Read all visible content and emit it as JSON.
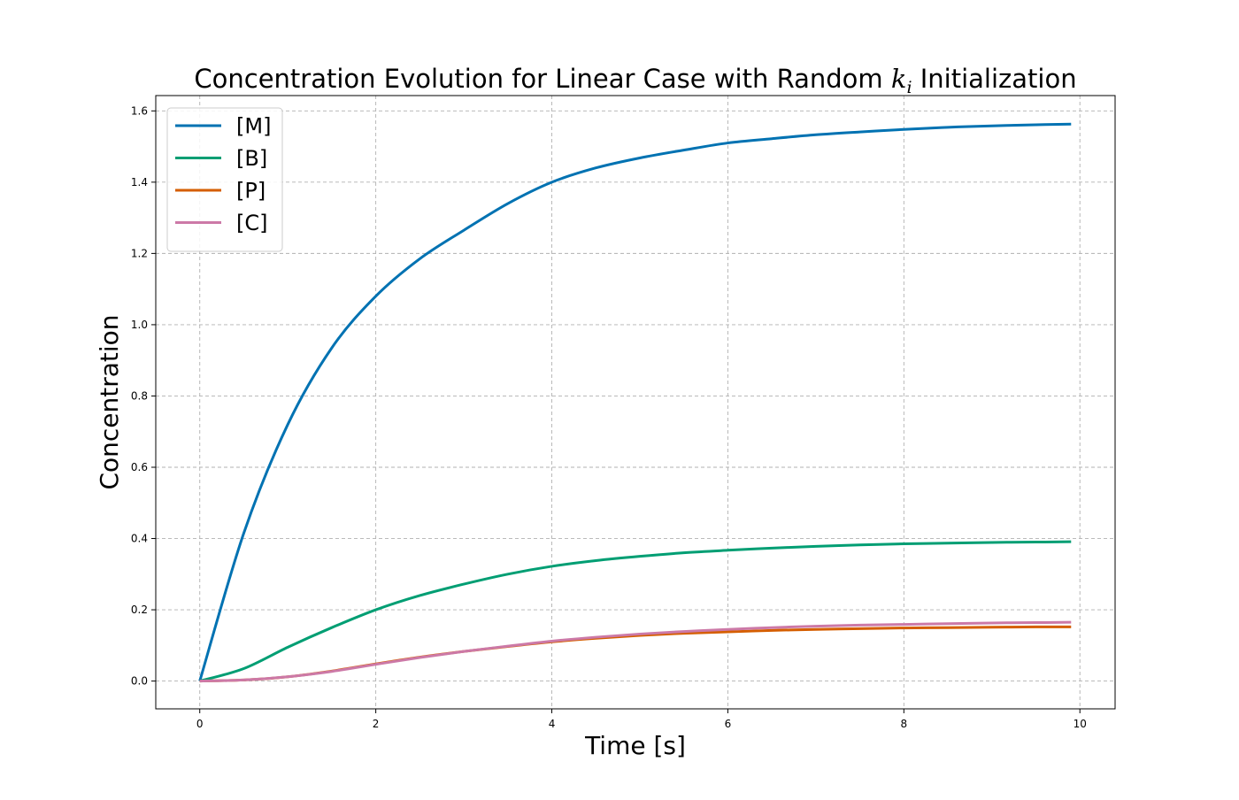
{
  "chart_data": {
    "type": "line",
    "title": {
      "prefix": "Concentration Evolution for Linear Case with Random ",
      "math_var": "k",
      "math_sub": "i",
      "suffix": " Initialization"
    },
    "xlabel": "Time [s]",
    "ylabel": "Concentration",
    "xlim": [
      -0.5,
      10.4
    ],
    "ylim": [
      -0.078,
      1.643
    ],
    "x_ticks": [
      0,
      2,
      4,
      6,
      8,
      10
    ],
    "y_ticks": [
      0.0,
      0.2,
      0.4,
      0.6,
      0.8,
      1.0,
      1.2,
      1.4,
      1.6
    ],
    "grid": true,
    "grid_style": "dashed",
    "legend_position": "upper-left",
    "x": [
      0,
      0.5,
      1,
      1.5,
      2,
      2.5,
      3,
      3.5,
      4,
      4.5,
      5,
      5.5,
      6,
      6.5,
      7,
      7.5,
      8,
      8.5,
      9,
      9.5,
      9.9
    ],
    "series": [
      {
        "name": "[M]",
        "color": "#0072B2",
        "values": [
          0.0,
          0.415,
          0.72,
          0.935,
          1.08,
          1.185,
          1.265,
          1.34,
          1.4,
          1.44,
          1.468,
          1.49,
          1.51,
          1.522,
          1.533,
          1.541,
          1.548,
          1.554,
          1.558,
          1.561,
          1.563
        ]
      },
      {
        "name": "[B]",
        "color": "#009E73",
        "values": [
          0.0,
          0.035,
          0.095,
          0.15,
          0.2,
          0.24,
          0.272,
          0.3,
          0.322,
          0.338,
          0.35,
          0.36,
          0.367,
          0.373,
          0.378,
          0.382,
          0.385,
          0.387,
          0.389,
          0.39,
          0.391
        ]
      },
      {
        "name": "[P]",
        "color": "#D55E00",
        "values": [
          0.0,
          0.003,
          0.012,
          0.028,
          0.048,
          0.067,
          0.083,
          0.097,
          0.11,
          0.12,
          0.128,
          0.134,
          0.138,
          0.142,
          0.145,
          0.147,
          0.149,
          0.15,
          0.151,
          0.152,
          0.152
        ]
      },
      {
        "name": "[C]",
        "color": "#CC79A7",
        "values": [
          0.0,
          0.003,
          0.012,
          0.027,
          0.047,
          0.066,
          0.083,
          0.098,
          0.112,
          0.123,
          0.132,
          0.139,
          0.145,
          0.15,
          0.154,
          0.157,
          0.159,
          0.161,
          0.163,
          0.164,
          0.165
        ]
      }
    ]
  }
}
